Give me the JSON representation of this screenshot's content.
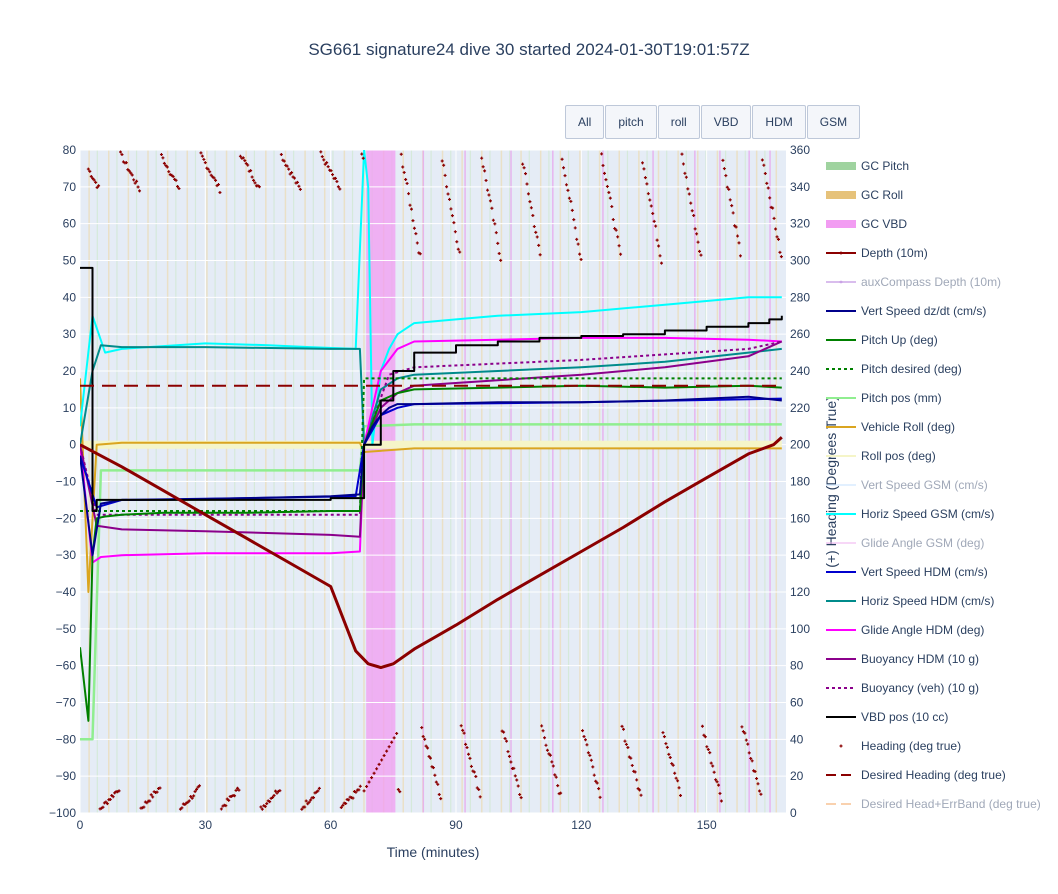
{
  "title": "SG661 signature24 dive 30 started 2024-01-30T19:01:57Z",
  "buttons": [
    "All",
    "pitch",
    "roll",
    "VBD",
    "HDM",
    "GSM"
  ],
  "chart_data": {
    "type": "line",
    "xlabel": "Time (minutes)",
    "ylabel_right": "(+) Heading (Degrees True)",
    "xlim": [
      0,
      169
    ],
    "ylim": [
      -100,
      80
    ],
    "y2lim": [
      0,
      360
    ],
    "xticks": [
      0,
      30,
      60,
      90,
      120,
      150
    ],
    "yticks": [
      80,
      70,
      60,
      50,
      40,
      30,
      20,
      10,
      0,
      -10,
      -20,
      -30,
      -40,
      -50,
      -60,
      -70,
      -80,
      -90,
      -100
    ],
    "y2ticks": [
      360,
      340,
      320,
      300,
      280,
      260,
      240,
      220,
      200,
      180,
      160,
      140,
      120,
      100,
      80,
      60,
      40,
      20,
      0
    ],
    "vbd_band": [
      68.5,
      75.5
    ],
    "series": [
      {
        "name": "GC Pitch",
        "color": "#9fd39f",
        "style": "band",
        "visible": true
      },
      {
        "name": "GC Roll",
        "color": "#e6c27a",
        "style": "band",
        "visible": true
      },
      {
        "name": "GC VBD",
        "color": "#f29cf2",
        "style": "band",
        "visible": true
      },
      {
        "name": "Depth (10m)",
        "color": "#8b0000",
        "style": "line",
        "x": [
          0,
          10,
          20,
          30,
          40,
          50,
          60,
          66,
          69,
          72,
          75,
          80,
          90,
          100,
          110,
          120,
          130,
          140,
          150,
          160,
          166,
          168
        ],
        "y": [
          0,
          -6,
          -12.5,
          -19,
          -25.5,
          -32,
          -38.5,
          -56,
          -59.5,
          -60.5,
          -59.5,
          -55.5,
          -49,
          -42,
          -35.5,
          -29,
          -22.5,
          -15.5,
          -9,
          -2.5,
          0,
          2
        ],
        "visible": true
      },
      {
        "name": "auxCompass Depth (10m)",
        "color": "#b57edc",
        "style": "line",
        "visible": false
      },
      {
        "name": "Vert Speed dz/dt (cm/s)",
        "color": "#00008b",
        "style": "line",
        "x": [
          0,
          3,
          5,
          10,
          20,
          40,
          60,
          67,
          68,
          70,
          72,
          74,
          76,
          80,
          100,
          120,
          140,
          160,
          168
        ],
        "y": [
          -3,
          -30,
          -16,
          -15,
          -15,
          -14.5,
          -14,
          -13.5,
          0,
          5,
          8,
          10,
          11,
          11,
          11.5,
          11.5,
          12,
          13,
          12
        ],
        "visible": true
      },
      {
        "name": "Pitch Up (deg)",
        "color": "#008000",
        "style": "line",
        "x": [
          0,
          2,
          3,
          4,
          6,
          10,
          20,
          40,
          60,
          67,
          68,
          72,
          76,
          80,
          100,
          120,
          140,
          160,
          168
        ],
        "y": [
          -55,
          -75,
          -30,
          -20,
          -19.5,
          -19,
          -18.5,
          -18.5,
          -18,
          -18,
          0,
          12,
          14,
          15,
          15.5,
          16,
          15.5,
          16,
          15.5
        ],
        "visible": true
      },
      {
        "name": "Pitch desired (deg)",
        "color": "#008000",
        "style": "dotted",
        "x": [
          0,
          10,
          40,
          67,
          68,
          168
        ],
        "y": [
          -18,
          -18,
          -18,
          -18,
          18,
          18
        ],
        "visible": true
      },
      {
        "name": "Pitch pos (mm)",
        "color": "#90ee90",
        "style": "line",
        "x": [
          0,
          3,
          5,
          40,
          67,
          68,
          80,
          168
        ],
        "y": [
          -80,
          -80,
          -7,
          -7,
          -7,
          5,
          5.5,
          5.5
        ],
        "visible": true
      },
      {
        "name": "Vehicle Roll (deg)",
        "color": "#daa520",
        "style": "line",
        "x": [
          0,
          2,
          4,
          10,
          40,
          67,
          68,
          80,
          120,
          168
        ],
        "y": [
          18,
          -40,
          0,
          0.5,
          0.5,
          0.5,
          -2,
          -1,
          -1,
          -1
        ],
        "visible": true
      },
      {
        "name": "Roll pos (deg)",
        "color": "#f5f5c8",
        "style": "line",
        "x": [
          0,
          168
        ],
        "y": [
          0,
          0
        ],
        "visible": true
      },
      {
        "name": "Vert Speed GSM (cm/s)",
        "color": "#c6e2ff",
        "style": "line",
        "visible": false
      },
      {
        "name": "Horiz Speed GSM (cm/s)",
        "color": "#00ffff",
        "style": "line",
        "x": [
          0,
          3,
          6,
          10,
          30,
          45,
          55,
          66,
          68,
          69,
          70,
          72,
          74,
          76,
          80,
          90,
          100,
          120,
          140,
          160,
          168
        ],
        "y": [
          5,
          35,
          25,
          26,
          27.5,
          27,
          26.5,
          26,
          80,
          70,
          0,
          20,
          26,
          30,
          33,
          34,
          35,
          36,
          38,
          40,
          40
        ],
        "visible": true
      },
      {
        "name": "Glide Angle GSM (deg)",
        "color": "#f0b0f0",
        "style": "line",
        "visible": false
      },
      {
        "name": "Vert Speed HDM (cm/s)",
        "color": "#0000cd",
        "style": "line",
        "x": [
          0,
          4,
          10,
          40,
          66,
          68,
          72,
          76,
          80,
          120,
          168
        ],
        "y": [
          -3,
          -17,
          -15,
          -14.5,
          -14,
          0,
          8,
          10,
          11,
          11.5,
          12.5
        ],
        "visible": true
      },
      {
        "name": "Horiz Speed HDM (cm/s)",
        "color": "#008b8b",
        "style": "line",
        "x": [
          0,
          3,
          5,
          10,
          30,
          60,
          67,
          68,
          72,
          76,
          80,
          100,
          120,
          140,
          160,
          168
        ],
        "y": [
          0,
          20,
          27,
          26.5,
          26.5,
          26,
          26,
          0,
          15,
          18,
          19,
          20,
          21,
          22.5,
          25,
          26
        ],
        "visible": true
      },
      {
        "name": "Glide Angle HDM (deg)",
        "color": "#ff00ff",
        "style": "line",
        "x": [
          0,
          3,
          5,
          10,
          30,
          60,
          67,
          68,
          72,
          76,
          80,
          100,
          120,
          140,
          160,
          168
        ],
        "y": [
          0,
          -32,
          -30.5,
          -30,
          -29.5,
          -29.5,
          -29,
          0,
          20,
          26,
          28,
          28.5,
          29,
          29,
          28.5,
          28
        ],
        "visible": true
      },
      {
        "name": "Buoyancy HDM (10 g)",
        "color": "#8b008b",
        "style": "line",
        "x": [
          0,
          4,
          10,
          30,
          60,
          67,
          68,
          72,
          76,
          80,
          100,
          120,
          140,
          160,
          168
        ],
        "y": [
          0,
          -22,
          -23,
          -23.5,
          -24.5,
          -25,
          0,
          10,
          14,
          16,
          17.5,
          19,
          21,
          24,
          28
        ],
        "visible": true
      },
      {
        "name": "Buoyancy (veh) (10 g)",
        "color": "#8b008b",
        "style": "dotted",
        "x": [
          0,
          4,
          10,
          40,
          67,
          68,
          74,
          80,
          100,
          120,
          140,
          160,
          168
        ],
        "y": [
          0,
          -19,
          -19,
          -19,
          -19,
          0,
          19,
          21,
          22,
          23,
          24.5,
          26,
          28
        ],
        "visible": true
      },
      {
        "name": "VBD pos (10 cc)",
        "color": "#000000",
        "style": "step",
        "x": [
          0,
          2,
          3,
          4,
          10,
          30,
          60,
          67,
          68,
          72,
          75,
          80,
          90,
          100,
          110,
          120,
          130,
          140,
          150,
          160,
          165,
          168
        ],
        "y": [
          48,
          48,
          -18,
          -15,
          -15,
          -15,
          -14.5,
          -14.5,
          0,
          12,
          20,
          25,
          27,
          28,
          29,
          29.5,
          30,
          31,
          32,
          33,
          34,
          35
        ],
        "visible": true
      },
      {
        "name": "Heading (deg true)",
        "color": "#8b0000",
        "style": "markers",
        "visible": true
      },
      {
        "name": "Desired Heading (deg true)",
        "color": "#8b0000",
        "style": "dashed",
        "x": [
          0,
          168
        ],
        "y2": [
          232,
          232
        ],
        "visible": true
      },
      {
        "name": "Desired Head+ErrBand (deg true)",
        "color": "#f4a460",
        "style": "dashed",
        "visible": false
      }
    ]
  }
}
